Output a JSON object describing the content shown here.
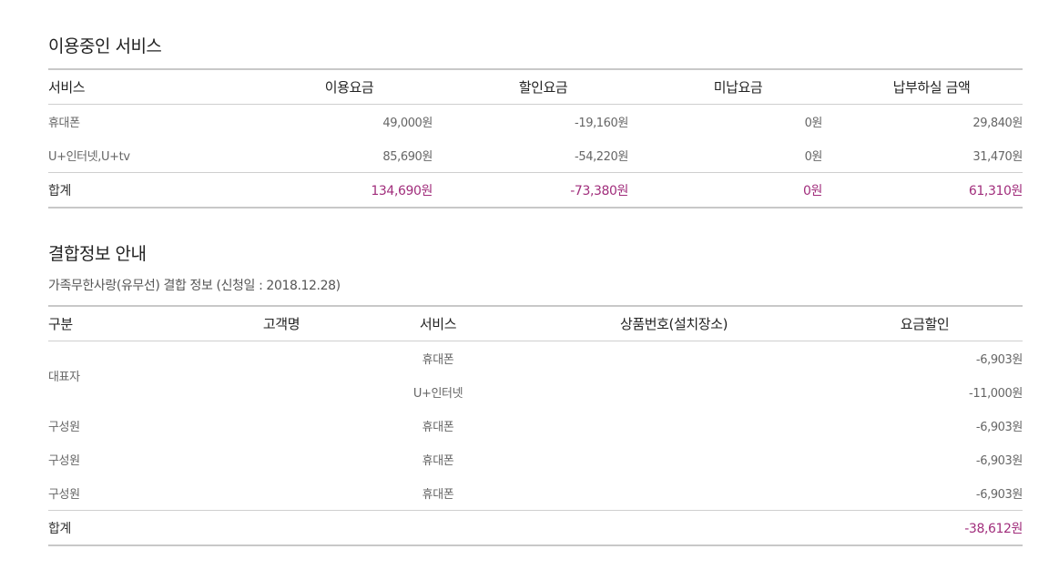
{
  "services": {
    "title": "이용중인 서비스",
    "headers": [
      "서비스",
      "이용요금",
      "할인요금",
      "미납요금",
      "납부하실 금액"
    ],
    "rows": [
      {
        "service": "휴대폰",
        "usage": "49,000원",
        "discount": "-19,160원",
        "unpaid": "0원",
        "payable": "29,840원"
      },
      {
        "service": "U+인터넷,U+tv",
        "usage": "85,690원",
        "discount": "-54,220원",
        "unpaid": "0원",
        "payable": "31,470원"
      }
    ],
    "total": {
      "label": "합계",
      "usage": "134,690원",
      "discount": "-73,380원",
      "unpaid": "0원",
      "payable": "61,310원"
    }
  },
  "bundle": {
    "title": "결합정보 안내",
    "subtitle": "가족무한사랑(유무선) 결합 정보 (신청일 : 2018.12.28)",
    "headers": [
      "구분",
      "고객명",
      "서비스",
      "상품번호(설치장소)",
      "요금할인"
    ],
    "rows": [
      {
        "type": "대표자",
        "service": "휴대폰",
        "discount": "-6,903원"
      },
      {
        "type": "",
        "service": "U+인터넷",
        "discount": "-11,000원"
      },
      {
        "type": "구성원",
        "service": "휴대폰",
        "discount": "-6,903원"
      },
      {
        "type": "구성원",
        "service": "휴대폰",
        "discount": "-6,903원"
      },
      {
        "type": "구성원",
        "service": "휴대폰",
        "discount": "-6,903원"
      }
    ],
    "total": {
      "label": "합계",
      "discount": "-38,612원"
    }
  },
  "colors": {
    "accent": "#a12e7c",
    "line": "#c8c8c8"
  }
}
